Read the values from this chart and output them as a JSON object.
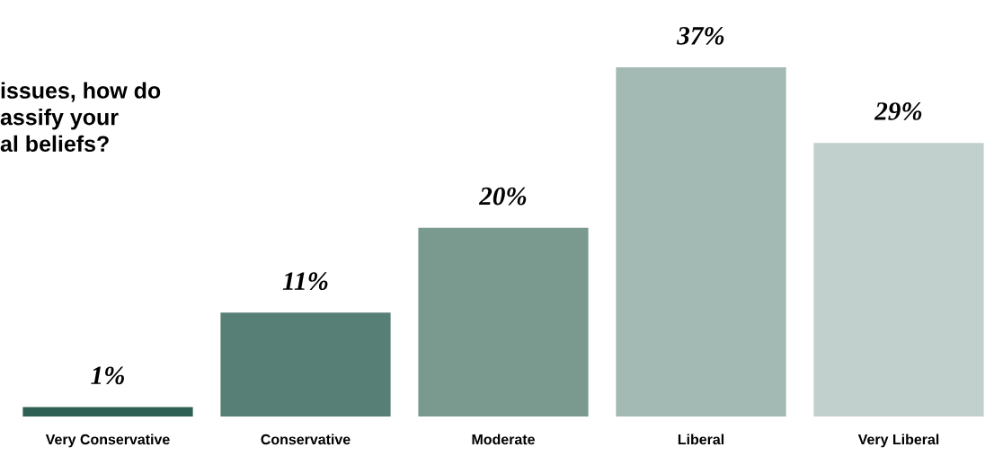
{
  "chart_data": {
    "type": "bar",
    "title": "issues, how do\nassify your\nal beliefs?",
    "categories": [
      "Very Conservative",
      "Conservative",
      "Moderate",
      "Liberal",
      "Very Liberal"
    ],
    "values": [
      1,
      11,
      20,
      37,
      29
    ],
    "colors": [
      "#2e6153",
      "#577f75",
      "#7a9a90",
      "#a3b9b3",
      "#c1d0cd"
    ],
    "value_labels": [
      "1%",
      "11%",
      "20%",
      "37%",
      "29%"
    ]
  }
}
